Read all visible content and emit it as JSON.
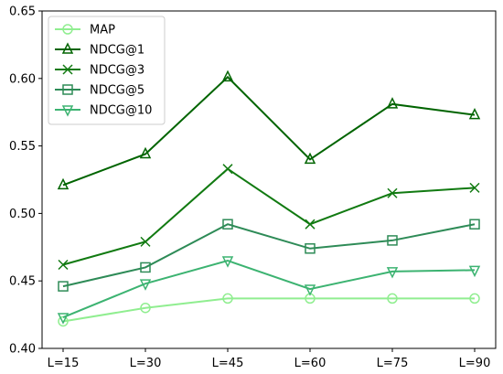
{
  "chart_data": {
    "type": "line",
    "categories": [
      "L=15",
      "L=30",
      "L=45",
      "L=60",
      "L=75",
      "L=90"
    ],
    "ylim": [
      0.4,
      0.65
    ],
    "yticks": [
      "0.40",
      "0.45",
      "0.50",
      "0.55",
      "0.60",
      "0.65"
    ],
    "grid": false,
    "legend_position": "top-left",
    "series": [
      {
        "name": "MAP",
        "marker": "circle",
        "color": "#90EE90",
        "values": [
          0.42,
          0.43,
          0.437,
          0.437,
          0.437,
          0.437
        ]
      },
      {
        "name": "NDCG@1",
        "marker": "triangle-up",
        "color": "#006400",
        "values": [
          0.521,
          0.544,
          0.601,
          0.54,
          0.581,
          0.573
        ]
      },
      {
        "name": "NDCG@3",
        "marker": "x",
        "color": "#117A11",
        "values": [
          0.462,
          0.479,
          0.533,
          0.492,
          0.515,
          0.519
        ]
      },
      {
        "name": "NDCG@5",
        "marker": "square",
        "color": "#2E8B57",
        "values": [
          0.446,
          0.46,
          0.492,
          0.474,
          0.48,
          0.492
        ]
      },
      {
        "name": "NDCG@10",
        "marker": "triangle-down",
        "color": "#3CB371",
        "values": [
          0.423,
          0.448,
          0.465,
          0.444,
          0.457,
          0.458
        ]
      }
    ]
  }
}
